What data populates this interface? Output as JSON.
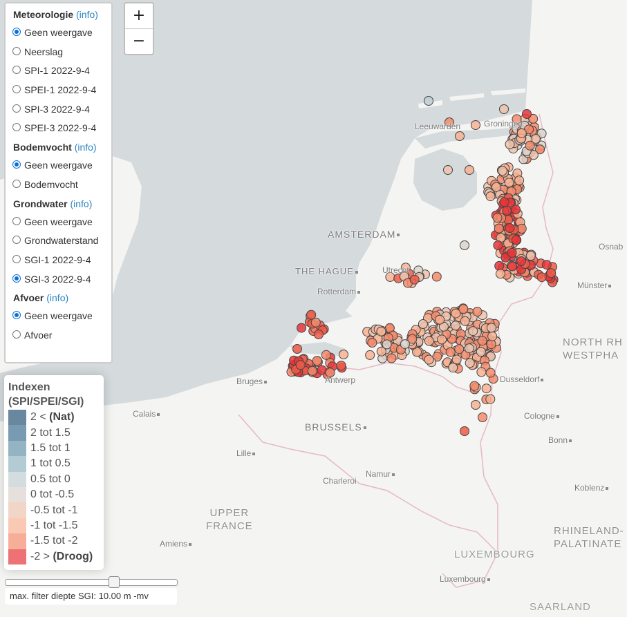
{
  "map": {
    "colors": {
      "sea": "#d5dadd",
      "land": "#f4f4f2",
      "border": "#e7b8c4",
      "water_inland": "#d5dadd"
    },
    "cities": [
      {
        "name": "Leeuwarden"
      },
      {
        "name": "Groningen"
      },
      {
        "name": "AMSTERDAM"
      },
      {
        "name": "THE HAGUE"
      },
      {
        "name": "Rotterdam"
      },
      {
        "name": "Utrecht"
      },
      {
        "name": "Osnab"
      },
      {
        "name": "Münster"
      },
      {
        "name": "Bruges"
      },
      {
        "name": "Antwerp"
      },
      {
        "name": "Dusseldorf"
      },
      {
        "name": "Calais"
      },
      {
        "name": "BRUSSELS"
      },
      {
        "name": "Cologne"
      },
      {
        "name": "Lille"
      },
      {
        "name": "Bonn"
      },
      {
        "name": "Namur"
      },
      {
        "name": "Charleroi"
      },
      {
        "name": "Koblenz"
      },
      {
        "name": "Amiens"
      },
      {
        "name": "LUXEMBOURG"
      },
      {
        "name": "Luxembourg"
      },
      {
        "name": "SAARLAND"
      }
    ],
    "regions": [
      {
        "line1": "NORTH RH",
        "line2": "WESTPHA"
      },
      {
        "line1": "UPPER",
        "line2": "FRANCE"
      },
      {
        "line1": "RHINELAND-",
        "line2": "PALATINATE"
      }
    ]
  },
  "zoom": {
    "in_label": "+",
    "out_label": "−"
  },
  "layers": {
    "groups": [
      {
        "title": "Meteorologie",
        "info": "(info)",
        "options": [
          "Geen weergave",
          "Neerslag",
          "SPI-1 2022-9-4",
          "SPEI-1 2022-9-4",
          "SPI-3 2022-9-4",
          "SPEI-3 2022-9-4"
        ],
        "selected": 0
      },
      {
        "title": "Bodemvocht",
        "info": "(info)",
        "options": [
          "Geen weergave",
          "Bodemvocht"
        ],
        "selected": 0
      },
      {
        "title": "Grondwater",
        "info": "(info)",
        "options": [
          "Geen weergave",
          "Grondwaterstand",
          "SGI-1 2022-9-4",
          "SGI-3 2022-9-4"
        ],
        "selected": 3
      },
      {
        "title": "Afvoer",
        "info": "(info)",
        "options": [
          "Geen weergave",
          "Afvoer"
        ],
        "selected": 0
      }
    ]
  },
  "legend": {
    "title1": "Indexen",
    "title2": "(SPI/SPEI/SGI)",
    "items": [
      {
        "label": "2 < ",
        "bold": "(Nat)",
        "color": "#2b5478"
      },
      {
        "label": "2 tot 1.5",
        "color": "#3e7193"
      },
      {
        "label": "1.5 tot 1",
        "color": "#6694a9"
      },
      {
        "label": "1 tot 0.5",
        "color": "#93b6c1"
      },
      {
        "label": "0.5 tot 0",
        "color": "#c0ced3"
      },
      {
        "label": "0 tot -0.5",
        "color": "#dbd3cd"
      },
      {
        "label": "-0.5 tot -1",
        "color": "#ebc3ae"
      },
      {
        "label": "-1 tot -1.5",
        "color": "#f7b293"
      },
      {
        "label": "-1.5 tot -2",
        "color": "#f38b6c"
      },
      {
        "label": "-2 > ",
        "bold": "(Droog)",
        "color": "#e6353a"
      }
    ]
  },
  "slider": {
    "label": "max. filter diepte SGI: 10.00 m -mv",
    "value": 10.0
  }
}
